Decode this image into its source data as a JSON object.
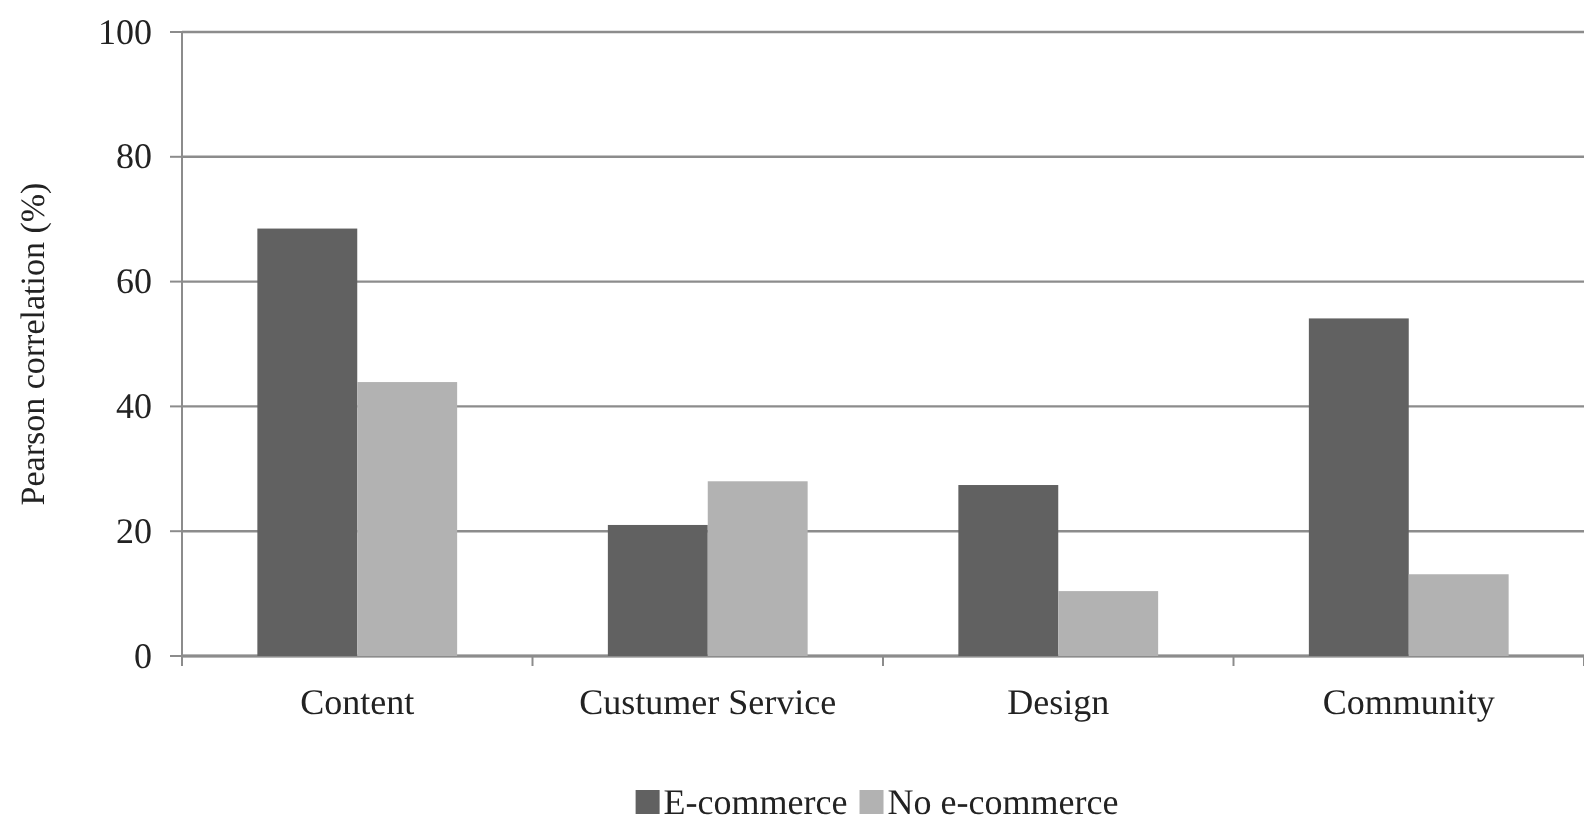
{
  "chart_data": {
    "type": "bar",
    "ylabel": "Pearson correlation (%)",
    "categories": [
      "Content",
      "Custumer Service",
      "Design",
      "Community"
    ],
    "series": [
      {
        "name": "E-commerce",
        "color": "#616161",
        "values": [
          68.5,
          21,
          27.4,
          54.1
        ]
      },
      {
        "name": "No e-commerce",
        "color": "#b2b2b2",
        "values": [
          43.9,
          28,
          10.4,
          13.1
        ]
      }
    ],
    "ylim": [
      0,
      100
    ],
    "yticks": [
      0,
      20,
      40,
      60,
      80,
      100
    ],
    "grid": "y",
    "legend": "bottom"
  }
}
